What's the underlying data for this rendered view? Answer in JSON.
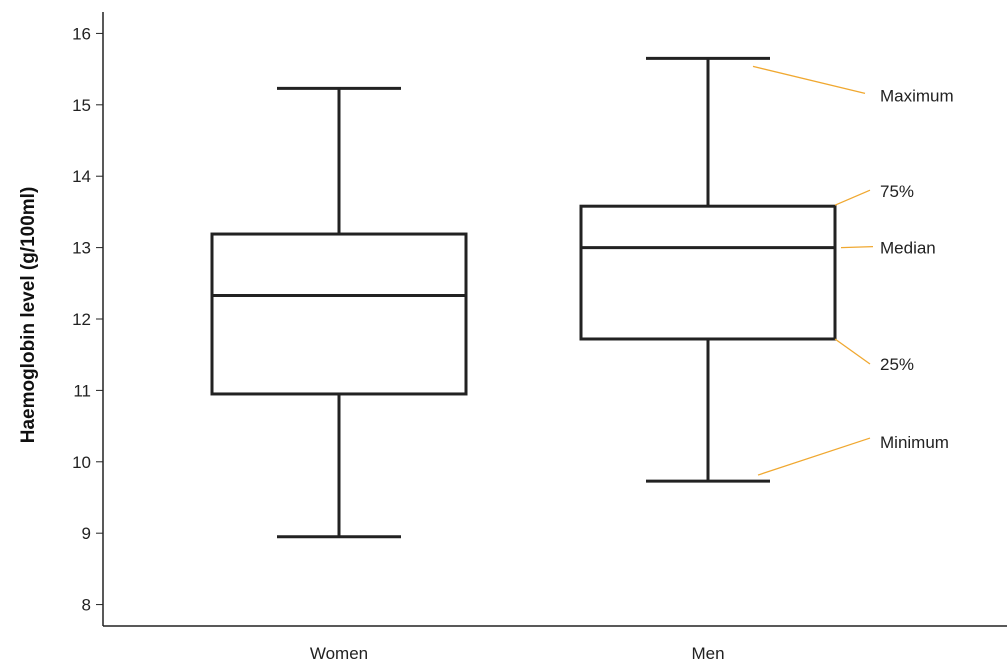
{
  "chart_data": {
    "type": "boxplot",
    "title": "",
    "xlabel": "",
    "ylabel": "Haemoglobin level (g/100ml)",
    "ylim": [
      7.7,
      16.3
    ],
    "yticks": [
      8,
      9,
      10,
      11,
      12,
      13,
      14,
      15,
      16
    ],
    "grid": false,
    "categories": [
      "Women",
      "Men"
    ],
    "boxes": [
      {
        "category": "Women",
        "min": 8.95,
        "q1": 10.95,
        "median": 12.33,
        "q3": 13.19,
        "max": 15.23
      },
      {
        "category": "Men",
        "min": 9.73,
        "q1": 11.72,
        "median": 13.0,
        "q3": 13.58,
        "max": 15.65
      }
    ],
    "annotations": [
      {
        "label": "Maximum",
        "refers_to": "max",
        "category": "Men"
      },
      {
        "label": "75%",
        "refers_to": "q3",
        "category": "Men"
      },
      {
        "label": "Median",
        "refers_to": "median",
        "category": "Men"
      },
      {
        "label": "25%",
        "refers_to": "q1",
        "category": "Men"
      },
      {
        "label": "Minimum",
        "refers_to": "min",
        "category": "Men"
      }
    ],
    "colors": {
      "box_stroke": "#222222",
      "axis": "#222222",
      "annotation_line": "#f0a830",
      "text": "#222222"
    }
  }
}
